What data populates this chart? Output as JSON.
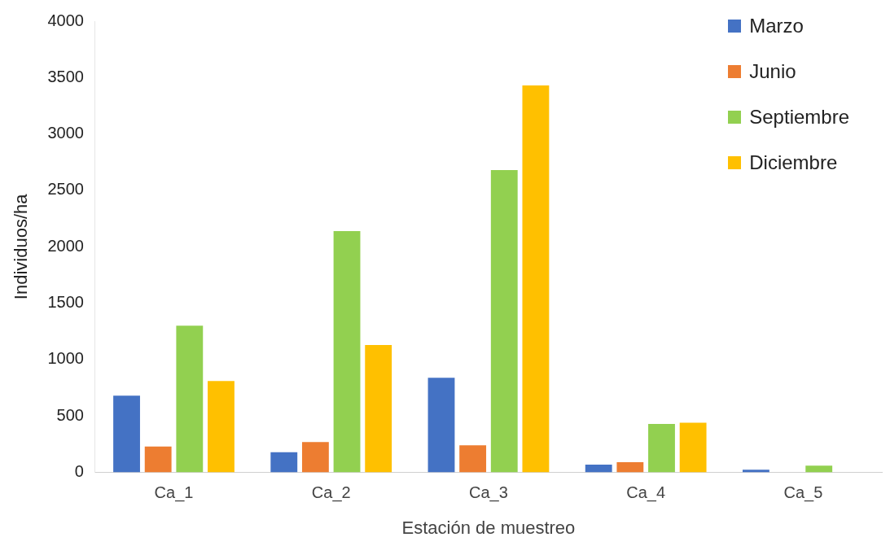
{
  "chart_data": {
    "type": "bar",
    "xlabel": "Estación de muestreo",
    "ylabel": "Individuos/ha",
    "categories": [
      "Ca_1",
      "Ca_2",
      "Ca_3",
      "Ca_4",
      "Ca_5"
    ],
    "series": [
      {
        "name": "Marzo",
        "color": "#4472c4",
        "values": [
          680,
          180,
          840,
          70,
          25
        ]
      },
      {
        "name": "Junio",
        "color": "#ed7d31",
        "values": [
          230,
          270,
          240,
          90,
          0
        ]
      },
      {
        "name": "Septiembre",
        "color": "#92d050",
        "values": [
          1300,
          2140,
          2680,
          430,
          60
        ]
      },
      {
        "name": "Diciembre",
        "color": "#ffc000",
        "values": [
          810,
          1130,
          3430,
          440,
          0
        ]
      }
    ],
    "ylim": [
      0,
      4000
    ],
    "yticks": [
      0,
      500,
      1000,
      1500,
      2000,
      2500,
      3000,
      3500,
      4000
    ],
    "grid": false,
    "legend": "top right"
  }
}
